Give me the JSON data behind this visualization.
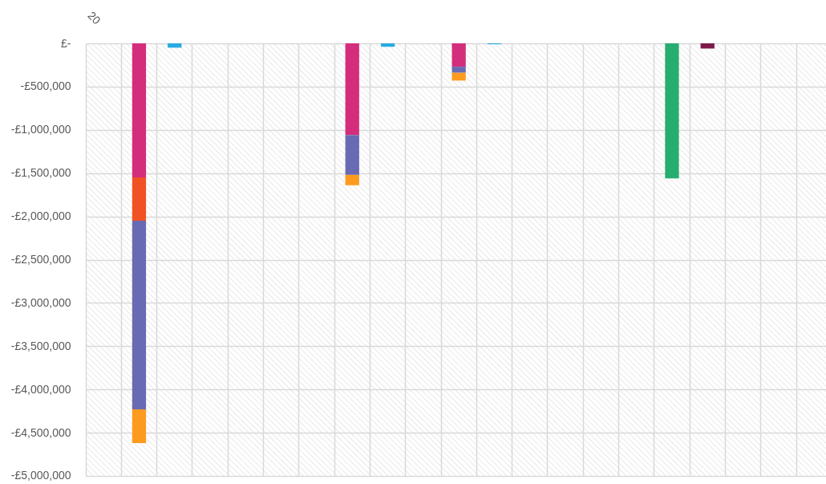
{
  "chart_data": {
    "type": "bar",
    "stacked": true,
    "categories": [
      "20",
      null,
      null,
      null,
      null,
      null,
      null,
      null,
      null,
      null,
      null,
      null,
      null,
      null,
      null,
      null,
      null,
      null,
      null,
      null,
      null
    ],
    "series": [
      {
        "color": "#d42d7c",
        "values": [
          null,
          -1550000,
          null,
          null,
          null,
          null,
          null,
          -1060000,
          null,
          null,
          -270000,
          null,
          null,
          null,
          null,
          null,
          null,
          null,
          null,
          null,
          null
        ]
      },
      {
        "color": "#f15223",
        "values": [
          null,
          -500000,
          null,
          null,
          null,
          null,
          null,
          null,
          null,
          null,
          null,
          null,
          null,
          null,
          null,
          null,
          null,
          null,
          null,
          null,
          null
        ]
      },
      {
        "color": "#686bb3",
        "values": [
          null,
          -2180000,
          null,
          null,
          null,
          null,
          null,
          -460000,
          null,
          null,
          -70000,
          null,
          null,
          null,
          null,
          null,
          null,
          null,
          null,
          null,
          null
        ]
      },
      {
        "color": "#fd9b1f",
        "values": [
          null,
          -390000,
          null,
          null,
          null,
          null,
          null,
          -120000,
          null,
          null,
          -90000,
          null,
          null,
          null,
          null,
          null,
          null,
          null,
          null,
          null,
          null
        ]
      },
      {
        "color": "#29aae1",
        "values": [
          null,
          null,
          -50000,
          null,
          null,
          null,
          null,
          null,
          -40000,
          null,
          null,
          -10000,
          null,
          null,
          null,
          null,
          null,
          null,
          null,
          null,
          null
        ]
      },
      {
        "color": "#27ad6f",
        "values": [
          null,
          null,
          null,
          null,
          null,
          null,
          null,
          null,
          null,
          null,
          null,
          null,
          null,
          null,
          null,
          null,
          -1560000,
          null,
          null,
          null,
          null
        ]
      },
      {
        "color": "#7d1a4a",
        "values": [
          null,
          null,
          null,
          null,
          null,
          null,
          null,
          null,
          null,
          null,
          null,
          null,
          null,
          null,
          null,
          null,
          null,
          -60000,
          null,
          null,
          null
        ]
      }
    ],
    "ylim": [
      -5000000,
      0
    ],
    "yticks": [
      {
        "value": 0,
        "label": "£-"
      },
      {
        "value": -500000,
        "label": "-£500,000"
      },
      {
        "value": -1000000,
        "label": "-£1,000,000"
      },
      {
        "value": -1500000,
        "label": "-£1,500,000"
      },
      {
        "value": -2000000,
        "label": "-£2,000,000"
      },
      {
        "value": -2500000,
        "label": "-£2,500,000"
      },
      {
        "value": -3000000,
        "label": "-£3,000,000"
      },
      {
        "value": -3500000,
        "label": "-£3,500,000"
      },
      {
        "value": -4000000,
        "label": "-£4,000,000"
      },
      {
        "value": -4500000,
        "label": "-£4,500,000"
      },
      {
        "value": -5000000,
        "label": "-£5,000,000"
      }
    ],
    "grid": true
  }
}
